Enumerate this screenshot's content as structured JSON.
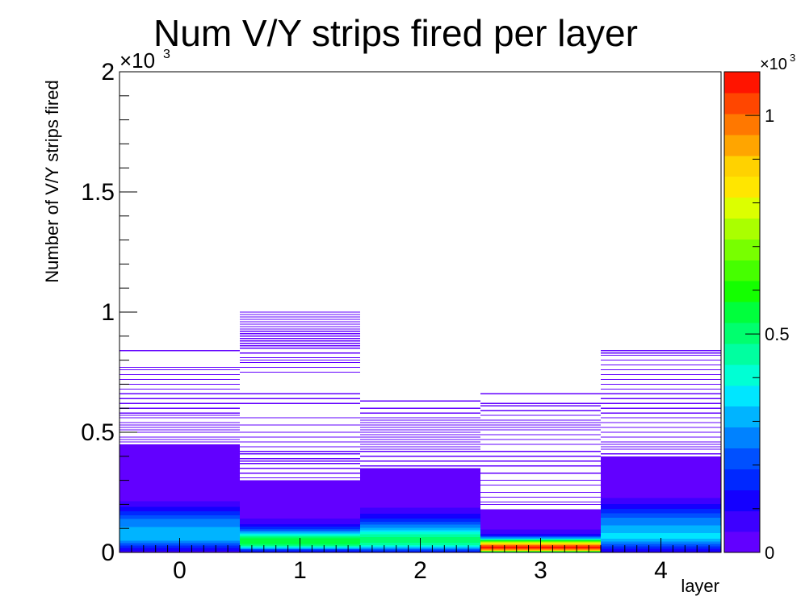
{
  "chart_data": {
    "type": "heatmap",
    "title": "Num V/Y strips fired per layer",
    "xlabel": "layer",
    "ylabel": "Number of V/Y strips fired",
    "xlim": [
      -0.5,
      4.5
    ],
    "ylim": [
      0,
      2000
    ],
    "x_categories": [
      "0",
      "1",
      "2",
      "3",
      "4"
    ],
    "y_ticks": [
      0,
      500,
      1000,
      1500,
      2000
    ],
    "y_tick_labels": [
      "0",
      "0.5",
      "1",
      "1.5",
      "2"
    ],
    "y_exponent_label": "×10",
    "y_exponent_power": "3",
    "bin_width": 2,
    "colorbar": {
      "ticks": [
        0,
        500,
        1000
      ],
      "tick_labels": [
        "0",
        "0.5",
        "1"
      ],
      "range": [
        0,
        1100
      ],
      "exponent_label": "×10",
      "exponent_power": "3",
      "colors": [
        "#6200ff",
        "#3d00ff",
        "#1400ff",
        "#0028ff",
        "#0050ff",
        "#0082ff",
        "#00b4ff",
        "#00e6ff",
        "#00ffd4",
        "#00ffa0",
        "#00ff6e",
        "#00ff3c",
        "#14ff00",
        "#46ff00",
        "#78ff00",
        "#aaff00",
        "#dcff00",
        "#ffe600",
        "#ffd200",
        "#ffa500",
        "#ff7800",
        "#ff4600",
        "#ff1400"
      ]
    },
    "layers": [
      {
        "layer": 0,
        "profile": [
          [
            0,
            60
          ],
          [
            20,
            140
          ],
          [
            40,
            240
          ],
          [
            60,
            330
          ],
          [
            80,
            330
          ],
          [
            100,
            300
          ],
          [
            120,
            260
          ],
          [
            140,
            240
          ],
          [
            160,
            180
          ],
          [
            180,
            120
          ],
          [
            200,
            70
          ],
          [
            220,
            40
          ],
          [
            240,
            20
          ],
          [
            260,
            10
          ],
          [
            300,
            5
          ],
          [
            450,
            2
          ]
        ],
        "sparse": [
          460,
          470,
          480,
          500,
          510,
          520,
          530,
          540,
          560,
          570,
          580,
          600,
          620,
          640,
          660,
          680,
          700,
          720,
          740,
          760,
          770,
          840
        ]
      },
      {
        "layer": 1,
        "profile": [
          [
            0,
            80
          ],
          [
            12,
            200
          ],
          [
            24,
            420
          ],
          [
            40,
            560
          ],
          [
            56,
            560
          ],
          [
            70,
            440
          ],
          [
            84,
            300
          ],
          [
            100,
            180
          ],
          [
            120,
            90
          ],
          [
            140,
            50
          ],
          [
            160,
            25
          ],
          [
            180,
            12
          ],
          [
            220,
            6
          ],
          [
            300,
            3
          ]
        ],
        "sparse": [
          310,
          330,
          350,
          370,
          380,
          390,
          410,
          420,
          440,
          460,
          480,
          500,
          530,
          560,
          620,
          640,
          660,
          750,
          770,
          790,
          800,
          810,
          830,
          850,
          860,
          870,
          880,
          890,
          900,
          910,
          920,
          930,
          940,
          950,
          960,
          970,
          980,
          990,
          1000
        ]
      },
      {
        "layer": 2,
        "profile": [
          [
            0,
            100
          ],
          [
            16,
            260
          ],
          [
            30,
            420
          ],
          [
            46,
            500
          ],
          [
            64,
            480
          ],
          [
            82,
            400
          ],
          [
            100,
            300
          ],
          [
            120,
            220
          ],
          [
            140,
            150
          ],
          [
            160,
            100
          ],
          [
            180,
            60
          ],
          [
            200,
            30
          ],
          [
            240,
            10
          ],
          [
            350,
            3
          ]
        ],
        "sparse": [
          360,
          380,
          400,
          420,
          430,
          440,
          450,
          460,
          470,
          480,
          490,
          500,
          510,
          520,
          530,
          540,
          550,
          560,
          580,
          600,
          630
        ]
      },
      {
        "layer": 3,
        "profile": [
          [
            0,
            300
          ],
          [
            10,
            900
          ],
          [
            20,
            1100
          ],
          [
            30,
            1000
          ],
          [
            40,
            800
          ],
          [
            50,
            560
          ],
          [
            60,
            300
          ],
          [
            70,
            150
          ],
          [
            80,
            80
          ],
          [
            100,
            40
          ],
          [
            120,
            20
          ],
          [
            150,
            8
          ],
          [
            180,
            3
          ]
        ],
        "sparse": [
          200,
          210,
          230,
          250,
          280,
          300,
          330,
          360,
          380,
          400,
          420,
          450,
          470,
          490,
          510,
          520,
          530,
          540,
          550,
          570,
          590,
          610,
          620,
          660
        ]
      },
      {
        "layer": 4,
        "profile": [
          [
            0,
            80
          ],
          [
            20,
            160
          ],
          [
            40,
            260
          ],
          [
            60,
            340
          ],
          [
            80,
            340
          ],
          [
            100,
            300
          ],
          [
            120,
            280
          ],
          [
            140,
            260
          ],
          [
            160,
            200
          ],
          [
            180,
            150
          ],
          [
            200,
            100
          ],
          [
            220,
            60
          ],
          [
            240,
            30
          ],
          [
            260,
            15
          ],
          [
            300,
            6
          ],
          [
            400,
            2
          ]
        ],
        "sparse": [
          410,
          430,
          440,
          450,
          460,
          480,
          500,
          520,
          540,
          560,
          580,
          600,
          620,
          640,
          660,
          680,
          700,
          720,
          740,
          760,
          780,
          800,
          820,
          830,
          840
        ]
      }
    ]
  }
}
